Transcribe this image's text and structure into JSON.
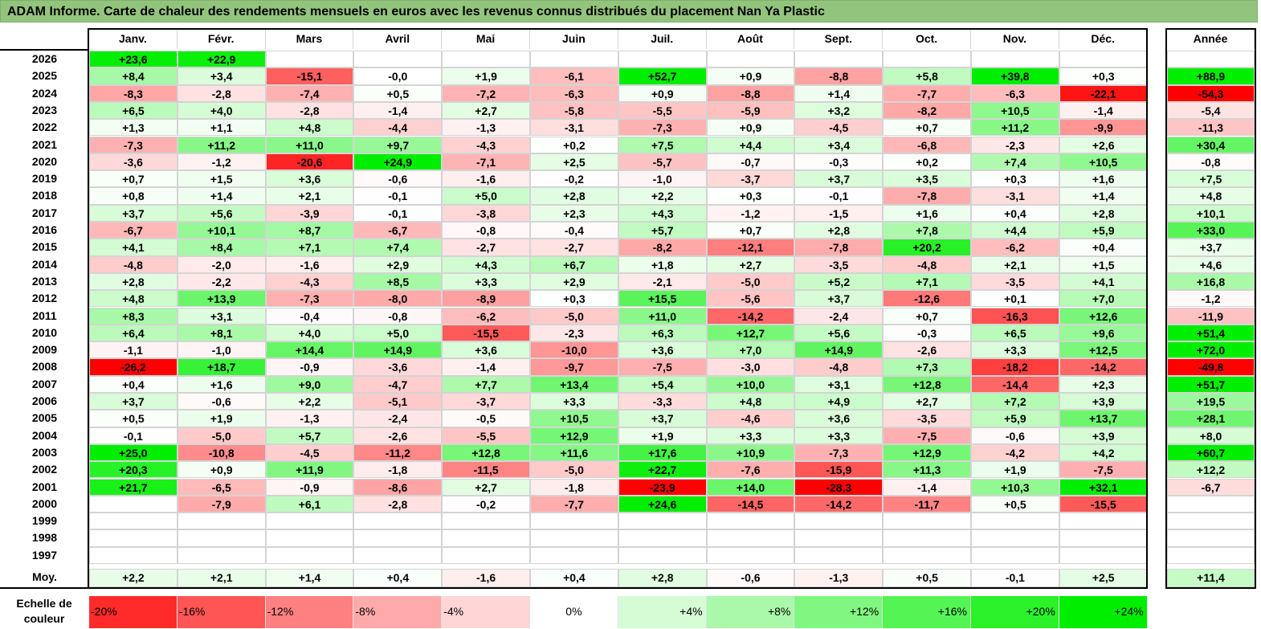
{
  "title": "ADAM Informe. Carte de chaleur des rendements mensuels en euros avec les revenus connus distribués du placement Nan Ya Plastic",
  "chart_data": {
    "type": "heatmap",
    "title": "ADAM Informe. Carte de chaleur des rendements mensuels en euros avec les revenus connus distribués du placement Nan Ya Plastic",
    "columns": [
      "Janv.",
      "Févr.",
      "Mars",
      "Avril",
      "Mai",
      "Juin",
      "Juil.",
      "Août",
      "Sept.",
      "Oct.",
      "Nov.",
      "Déc."
    ],
    "year_column": "Année",
    "rows": [
      {
        "year": "2026",
        "values": [
          "+23,6",
          "+22,9",
          "",
          "",
          "",
          "",
          "",
          "",
          "",
          "",
          "",
          ""
        ],
        "annual": ""
      },
      {
        "year": "2025",
        "values": [
          "+8,4",
          "+3,4",
          "-15,1",
          "-0,0",
          "+1,9",
          "-6,1",
          "+52,7",
          "+0,9",
          "-8,8",
          "+5,8",
          "+39,8",
          "+0,3"
        ],
        "annual": "+88,9"
      },
      {
        "year": "2024",
        "values": [
          "-8,3",
          "-2,8",
          "-7,4",
          "+0,5",
          "-7,2",
          "-6,3",
          "+0,9",
          "-8,8",
          "+1,4",
          "-7,7",
          "-6,3",
          "-22,1"
        ],
        "annual": "-54,3"
      },
      {
        "year": "2023",
        "values": [
          "+6,5",
          "+4,0",
          "-2,8",
          "-1,4",
          "+2,7",
          "-5,8",
          "-5,5",
          "-5,9",
          "+3,2",
          "-8,2",
          "+10,5",
          "-1,4"
        ],
        "annual": "-5,4"
      },
      {
        "year": "2022",
        "values": [
          "+1,3",
          "+1,1",
          "+4,8",
          "-4,4",
          "-1,3",
          "-3,1",
          "-7,3",
          "+0,9",
          "-4,5",
          "+0,7",
          "+11,2",
          "-9,9"
        ],
        "annual": "-11,3"
      },
      {
        "year": "2021",
        "values": [
          "-7,3",
          "+11,2",
          "+11,0",
          "+9,7",
          "-4,3",
          "+0,2",
          "+7,5",
          "+4,4",
          "+3,4",
          "-6,8",
          "-2,3",
          "+2,6"
        ],
        "annual": "+30,4"
      },
      {
        "year": "2020",
        "values": [
          "-3,6",
          "-1,2",
          "-20,6",
          "+24,9",
          "-7,1",
          "+2,5",
          "-5,7",
          "-0,7",
          "-0,3",
          "+0,2",
          "+7,4",
          "+10,5"
        ],
        "annual": "-0,8"
      },
      {
        "year": "2019",
        "values": [
          "+0,7",
          "+1,5",
          "+3,6",
          "-0,6",
          "-1,6",
          "-0,2",
          "-1,0",
          "-3,7",
          "+3,7",
          "+3,5",
          "+0,3",
          "+1,6"
        ],
        "annual": "+7,5"
      },
      {
        "year": "2018",
        "values": [
          "+0,8",
          "+1,4",
          "+2,1",
          "-0,1",
          "+5,0",
          "+2,8",
          "+2,2",
          "+0,3",
          "-0,1",
          "-7,8",
          "-3,1",
          "+1,4"
        ],
        "annual": "+4,8"
      },
      {
        "year": "2017",
        "values": [
          "+3,7",
          "+5,6",
          "-3,9",
          "-0,1",
          "-3,8",
          "+2,3",
          "+4,3",
          "-1,2",
          "-1,5",
          "+1,6",
          "+0,4",
          "+2,8"
        ],
        "annual": "+10,1"
      },
      {
        "year": "2016",
        "values": [
          "-6,7",
          "+10,1",
          "+8,7",
          "-6,7",
          "-0,8",
          "-0,4",
          "+5,7",
          "+0,7",
          "+2,8",
          "+7,8",
          "+4,4",
          "+5,9"
        ],
        "annual": "+33,0"
      },
      {
        "year": "2015",
        "values": [
          "+4,1",
          "+8,4",
          "+7,1",
          "+7,4",
          "-2,7",
          "-2,7",
          "-8,2",
          "-12,1",
          "-7,8",
          "+20,2",
          "-6,2",
          "+0,4"
        ],
        "annual": "+3,7"
      },
      {
        "year": "2014",
        "values": [
          "-4,8",
          "-2,0",
          "-1,6",
          "+2,9",
          "+4,3",
          "+6,7",
          "+1,8",
          "+2,7",
          "-3,5",
          "-4,8",
          "+2,1",
          "+1,5"
        ],
        "annual": "+4,6"
      },
      {
        "year": "2013",
        "values": [
          "+2,8",
          "-2,2",
          "-4,3",
          "+8,5",
          "+3,3",
          "+2,9",
          "-2,1",
          "-5,0",
          "+5,2",
          "+7,1",
          "-3,5",
          "+4,1"
        ],
        "annual": "+16,8"
      },
      {
        "year": "2012",
        "values": [
          "+4,8",
          "+13,9",
          "-7,3",
          "-8,0",
          "-8,9",
          "+0,3",
          "+15,5",
          "-5,6",
          "+3,7",
          "-12,6",
          "+0,1",
          "+7,0"
        ],
        "annual": "-1,2"
      },
      {
        "year": "2011",
        "values": [
          "+8,3",
          "+3,1",
          "-0,4",
          "-0,8",
          "-6,2",
          "-5,0",
          "+11,0",
          "-14,2",
          "-2,4",
          "+0,7",
          "-16,3",
          "+12,6"
        ],
        "annual": "-11,9"
      },
      {
        "year": "2010",
        "values": [
          "+6,4",
          "+8,1",
          "+4,0",
          "+5,0",
          "-15,5",
          "-2,3",
          "+6,3",
          "+12,7",
          "+5,6",
          "-0,3",
          "+6,5",
          "+9,6"
        ],
        "annual": "+51,4"
      },
      {
        "year": "2009",
        "values": [
          "-1,1",
          "-1,0",
          "+14,4",
          "+14,9",
          "+3,6",
          "-10,0",
          "+3,6",
          "+7,0",
          "+14,9",
          "-2,6",
          "+3,3",
          "+12,5"
        ],
        "annual": "+72,0"
      },
      {
        "year": "2008",
        "values": [
          "-26,2",
          "+18,7",
          "-0,9",
          "-3,6",
          "-1,4",
          "-9,7",
          "-7,5",
          "-3,0",
          "-4,8",
          "+7,3",
          "-18,2",
          "-14,2"
        ],
        "annual": "-49,8"
      },
      {
        "year": "2007",
        "values": [
          "+0,4",
          "+1,6",
          "+9,0",
          "-4,7",
          "+7,7",
          "+13,4",
          "+5,4",
          "+10,0",
          "+3,1",
          "+12,8",
          "-14,4",
          "+2,3"
        ],
        "annual": "+51,7"
      },
      {
        "year": "2006",
        "values": [
          "+3,7",
          "-0,6",
          "+2,2",
          "-5,1",
          "-3,7",
          "+3,3",
          "-3,3",
          "+4,8",
          "+4,9",
          "+2,7",
          "+7,2",
          "+3,9"
        ],
        "annual": "+19,5"
      },
      {
        "year": "2005",
        "values": [
          "+0,5",
          "+1,9",
          "-1,3",
          "-2,4",
          "-0,5",
          "+10,5",
          "+3,7",
          "-4,6",
          "+3,6",
          "-3,5",
          "+5,9",
          "+13,7"
        ],
        "annual": "+28,1"
      },
      {
        "year": "2004",
        "values": [
          "-0,1",
          "-5,0",
          "+5,7",
          "-2,6",
          "-5,5",
          "+12,9",
          "+1,9",
          "+3,3",
          "+3,3",
          "-7,5",
          "-0,6",
          "+3,9"
        ],
        "annual": "+8,0"
      },
      {
        "year": "2003",
        "values": [
          "+25,0",
          "-10,8",
          "-4,5",
          "-11,2",
          "+12,8",
          "+11,6",
          "+17,6",
          "+10,9",
          "-7,3",
          "+12,9",
          "-4,2",
          "+4,2"
        ],
        "annual": "+60,7"
      },
      {
        "year": "2002",
        "values": [
          "+20,3",
          "+0,9",
          "+11,9",
          "-1,8",
          "-11,5",
          "-5,0",
          "+22,7",
          "-7,6",
          "-15,9",
          "+11,3",
          "+1,9",
          "-7,5"
        ],
        "annual": "+12,2"
      },
      {
        "year": "2001",
        "values": [
          "+21,7",
          "-6,5",
          "-0,9",
          "-8,6",
          "+2,7",
          "-1,8",
          "-23,9",
          "+14,0",
          "-28,3",
          "-1,4",
          "+10,3",
          "+32,1"
        ],
        "annual": "-6,7"
      },
      {
        "year": "2000",
        "values": [
          "",
          "-7,9",
          "+6,1",
          "-2,8",
          "-0,2",
          "-7,7",
          "+24,6",
          "-14,5",
          "-14,2",
          "-11,7",
          "+0,5",
          "-15,5"
        ],
        "annual": ""
      },
      {
        "year": "1999",
        "values": [
          "",
          "",
          "",
          "",
          "",
          "",
          "",
          "",
          "",
          "",
          "",
          ""
        ],
        "annual": ""
      },
      {
        "year": "1998",
        "values": [
          "",
          "",
          "",
          "",
          "",
          "",
          "",
          "",
          "",
          "",
          "",
          ""
        ],
        "annual": ""
      },
      {
        "year": "1997",
        "values": [
          "",
          "",
          "",
          "",
          "",
          "",
          "",
          "",
          "",
          "",
          "",
          ""
        ],
        "annual": ""
      }
    ],
    "average": {
      "label": "Moy.",
      "values": [
        "+2,2",
        "+2,1",
        "+1,4",
        "+0,4",
        "-1,6",
        "+0,4",
        "+2,8",
        "-0,6",
        "-1,3",
        "+0,5",
        "-0,1",
        "+2,5"
      ],
      "annual": "+11,4"
    },
    "color_scale": {
      "label": "Echelle de couleur",
      "stops": [
        "-20%",
        "-16%",
        "-12%",
        "-8%",
        "-4%",
        "0%",
        "+4%",
        "+8%",
        "+12%",
        "+16%",
        "+20%",
        "+24%"
      ],
      "stop_values": [
        -20,
        -16,
        -12,
        -8,
        -4,
        0,
        4,
        8,
        12,
        16,
        20,
        24
      ]
    },
    "colors": {
      "negative_max": "#ff0000",
      "neutral": "#ffffff",
      "positive_max": "#00ee00",
      "header_bg": "#93c47d"
    }
  }
}
